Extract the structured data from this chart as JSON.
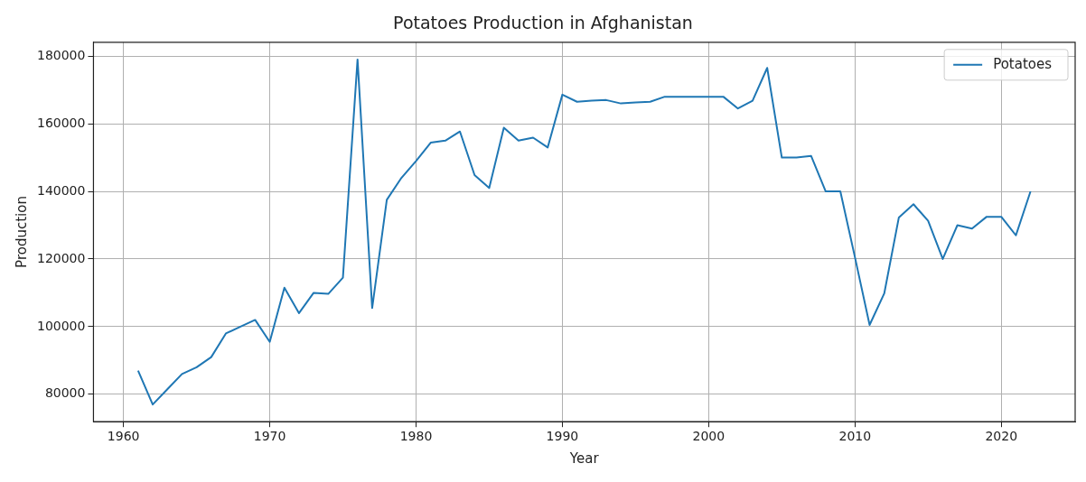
{
  "chart_data": {
    "type": "line",
    "title": "Potatoes Production in Afghanistan",
    "xlabel": "Year",
    "ylabel": "Production",
    "x": [
      1961,
      1962,
      1963,
      1964,
      1965,
      1966,
      1967,
      1968,
      1969,
      1970,
      1971,
      1972,
      1973,
      1974,
      1975,
      1976,
      1977,
      1978,
      1979,
      1980,
      1981,
      1982,
      1983,
      1984,
      1985,
      1986,
      1987,
      1988,
      1989,
      1990,
      1991,
      1992,
      1993,
      1994,
      1995,
      1996,
      1997,
      1998,
      1999,
      2000,
      2001,
      2002,
      2003,
      2004,
      2005,
      2006,
      2007,
      2008,
      2009,
      2010,
      2011,
      2012,
      2013,
      2014,
      2015,
      2016,
      2017,
      2018,
      2019,
      2020,
      2021,
      2022
    ],
    "series": [
      {
        "name": "Potatoes",
        "color": "#1f77b4",
        "values": [
          87000,
          77000,
          81500,
          86000,
          88000,
          91000,
          98000,
          100000,
          102000,
          95500,
          111500,
          104000,
          110000,
          109700,
          114500,
          179000,
          105500,
          137500,
          144000,
          149000,
          154400,
          155000,
          157700,
          144800,
          141000,
          158800,
          155000,
          155900,
          153000,
          168600,
          166500,
          166800,
          167000,
          166000,
          166300,
          166500,
          168000,
          168000,
          168000,
          168000,
          168000,
          164500,
          166800,
          176500,
          150000,
          150000,
          150500,
          140000,
          140000,
          120500,
          100500,
          109800,
          132300,
          136200,
          131300,
          120000,
          130000,
          129000,
          132500,
          132500,
          127000,
          140000
        ]
      }
    ],
    "xlim": [
      1957.95,
      2025.05
    ],
    "xticks": [
      1960,
      1970,
      1980,
      1990,
      2000,
      2010,
      2020
    ],
    "ylim": [
      71900,
      184100
    ],
    "yticks": [
      80000,
      100000,
      120000,
      140000,
      160000,
      180000
    ],
    "grid": true,
    "legend": "top right",
    "marker": "none",
    "line_style": "solid"
  }
}
